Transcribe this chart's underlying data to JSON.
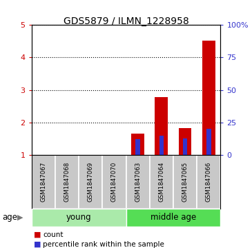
{
  "title": "GDS5879 / ILMN_1228958",
  "samples": [
    "GSM1847067",
    "GSM1847068",
    "GSM1847069",
    "GSM1847070",
    "GSM1847063",
    "GSM1847064",
    "GSM1847065",
    "GSM1847066"
  ],
  "count_values": [
    0,
    0,
    0,
    0,
    1.65,
    2.78,
    1.82,
    4.52
  ],
  "percentile_values": [
    0,
    0,
    0,
    0,
    12,
    15,
    13,
    20
  ],
  "ylim_left": [
    1,
    5
  ],
  "ylim_right": [
    0,
    100
  ],
  "yticks_left": [
    1,
    2,
    3,
    4,
    5
  ],
  "yticks_right": [
    0,
    25,
    50,
    75,
    100
  ],
  "bar_color_red": "#CC0000",
  "bar_color_blue": "#3333CC",
  "bg_color": "#FFFFFF",
  "sample_box_color": "#C8C8C8",
  "young_color": "#AAEAAA",
  "middle_color": "#55DD55",
  "legend_count": "count",
  "legend_pct": "percentile rank within the sample",
  "group_young": "young",
  "group_middle": "middle age",
  "age_label": "age"
}
